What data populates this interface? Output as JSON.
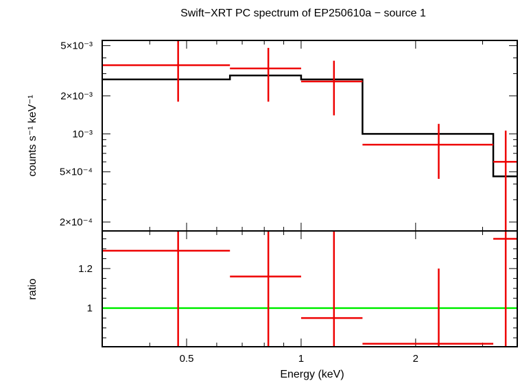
{
  "colors": {
    "model": "#000000",
    "data": "#ee0000",
    "unity": "#00ee00",
    "axis": "#000000"
  },
  "chart_data": [
    {
      "panel": "spectrum",
      "type": "line",
      "title": "Swift−XRT PC spectrum of EP250610a − source 1",
      "xlabel": "",
      "ylabel": "counts s⁻¹ keV⁻¹",
      "xscale": "log",
      "yscale": "log",
      "xlim": [
        0.3,
        3.7
      ],
      "ylim": [
        0.00017,
        0.0055
      ],
      "yticks": [
        {
          "value": 0.005,
          "label": "5×10⁻³"
        },
        {
          "value": 0.002,
          "label": "2×10⁻³"
        },
        {
          "value": 0.001,
          "label": "10⁻³"
        },
        {
          "value": 0.0005,
          "label": "5×10⁻⁴"
        },
        {
          "value": 0.0002,
          "label": "2×10⁻⁴"
        }
      ],
      "model": {
        "name": "model",
        "edges": [
          0.3,
          0.65,
          1.0,
          1.45,
          3.2,
          3.7
        ],
        "values": [
          0.0027,
          0.0029,
          0.0027,
          0.001,
          0.00046
        ]
      },
      "series": [
        {
          "name": "data",
          "points": [
            {
              "x": 0.475,
              "xlo": 0.3,
              "xhi": 0.65,
              "y": 0.0035,
              "ylo": 0.0018,
              "yhi": 0.0055
            },
            {
              "x": 0.82,
              "xlo": 0.65,
              "xhi": 1.0,
              "y": 0.0033,
              "ylo": 0.0018,
              "yhi": 0.0048
            },
            {
              "x": 1.22,
              "xlo": 1.0,
              "xhi": 1.45,
              "y": 0.0026,
              "ylo": 0.0014,
              "yhi": 0.0038
            },
            {
              "x": 2.3,
              "xlo": 1.45,
              "xhi": 3.2,
              "y": 0.00082,
              "ylo": 0.00044,
              "yhi": 0.0012
            },
            {
              "x": 3.45,
              "xlo": 3.2,
              "xhi": 3.7,
              "y": 0.0006,
              "ylo": 0.00017,
              "yhi": 0.00106
            }
          ]
        }
      ]
    },
    {
      "panel": "ratio",
      "type": "scatter",
      "xlabel": "Energy (keV)",
      "ylabel": "ratio",
      "xscale": "log",
      "xlim": [
        0.3,
        3.7
      ],
      "ylim": [
        0.805,
        1.39
      ],
      "xticks": [
        {
          "value": 0.5,
          "label": "0.5"
        },
        {
          "value": 1,
          "label": "1"
        },
        {
          "value": 2,
          "label": "2"
        }
      ],
      "yticks": [
        {
          "value": 1.2,
          "label": "1.2"
        },
        {
          "value": 1,
          "label": "1"
        }
      ],
      "reference": {
        "name": "unity",
        "y": 1
      },
      "series": [
        {
          "name": "ratio",
          "points": [
            {
              "x": 0.475,
              "xlo": 0.3,
              "xhi": 0.65,
              "y": 1.29,
              "ylo": 0.805,
              "yhi": 1.39
            },
            {
              "x": 0.82,
              "xlo": 0.65,
              "xhi": 1.0,
              "y": 1.16,
              "ylo": 0.805,
              "yhi": 1.39
            },
            {
              "x": 1.22,
              "xlo": 1.0,
              "xhi": 1.45,
              "y": 0.95,
              "ylo": 0.805,
              "yhi": 1.39
            },
            {
              "x": 2.3,
              "xlo": 1.45,
              "xhi": 3.2,
              "y": 0.82,
              "ylo": 0.805,
              "yhi": 1.2
            },
            {
              "x": 3.45,
              "xlo": 3.2,
              "xhi": 3.7,
              "y": 1.35,
              "ylo": 0.805,
              "yhi": 1.39
            }
          ]
        }
      ]
    }
  ]
}
